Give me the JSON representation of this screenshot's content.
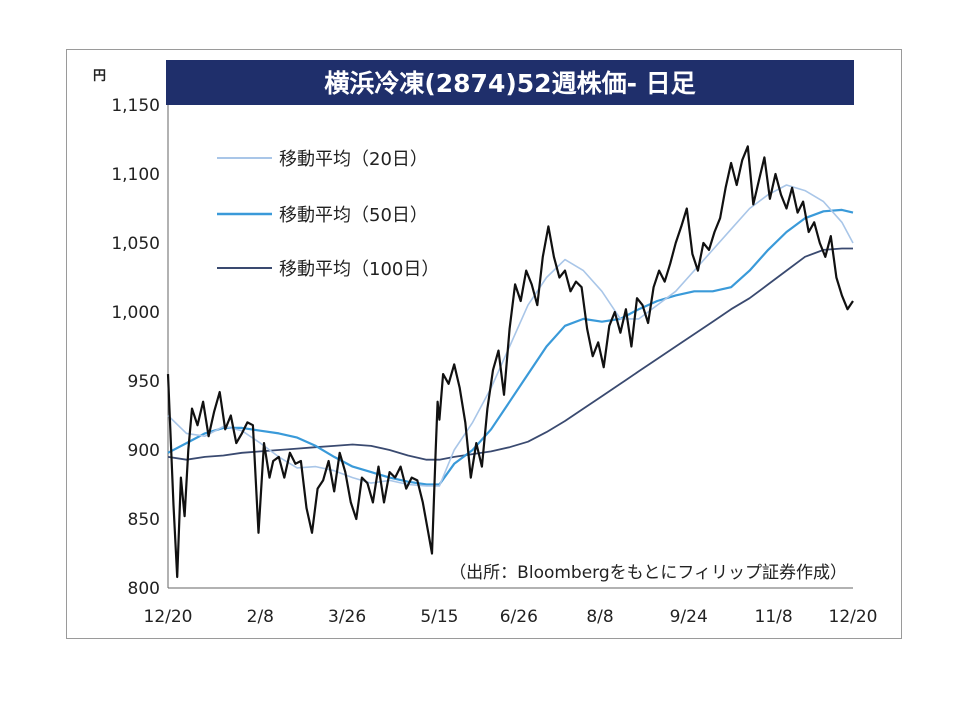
{
  "chart_data": {
    "type": "line",
    "title": "横浜冷凍(2874)52週株価- 日足",
    "y_unit": "円",
    "ylim": [
      800,
      1150
    ],
    "y_ticks": [
      "800",
      "850",
      "900",
      "950",
      "1,000",
      "1,050",
      "1,100",
      "1,150"
    ],
    "y_tick_values": [
      800,
      850,
      900,
      950,
      1000,
      1050,
      1100,
      1150
    ],
    "x_ticks": [
      "12/20",
      "2/8",
      "3/26",
      "5/15",
      "6/26",
      "8/8",
      "9/24",
      "11/8",
      "12/20"
    ],
    "x_tick_values": [
      0,
      50,
      97,
      147,
      190,
      234,
      282,
      328,
      371
    ],
    "xlim": [
      0,
      371
    ],
    "source_note": "（出所：Bloombergをもとにフィリップ証券作成）",
    "colors": {
      "title_bg": "#1f2f6b",
      "price": "#111111",
      "ma20": "#a9c6e8",
      "ma50": "#3a9ad9",
      "ma100": "#3a4a70"
    },
    "series": [
      {
        "name": "株価",
        "color": "#111111",
        "x": [
          0,
          3,
          5,
          7,
          9,
          11,
          13,
          16,
          19,
          22,
          25,
          28,
          31,
          34,
          37,
          40,
          43,
          46,
          49,
          52,
          55,
          57,
          60,
          63,
          66,
          69,
          72,
          75,
          78,
          81,
          84,
          87,
          90,
          93,
          96,
          99,
          102,
          105,
          108,
          111,
          114,
          117,
          120,
          123,
          126,
          129,
          132,
          135,
          138,
          141,
          143,
          145,
          146,
          147,
          149,
          152,
          155,
          158,
          161,
          164,
          167,
          170,
          173,
          176,
          179,
          182,
          185,
          188,
          191,
          194,
          197,
          200,
          203,
          206,
          209,
          212,
          215,
          218,
          221,
          224,
          227,
          230,
          233,
          236,
          239,
          242,
          245,
          248,
          251,
          254,
          257,
          260,
          263,
          266,
          269,
          272,
          275,
          278,
          281,
          284,
          287,
          290,
          293,
          296,
          299,
          302,
          305,
          308,
          311,
          314,
          317,
          320,
          323,
          326,
          329,
          332,
          335,
          338,
          341,
          344,
          347,
          350,
          353,
          356,
          359,
          362,
          365,
          368,
          371
        ],
        "values": [
          955,
          860,
          808,
          880,
          852,
          900,
          930,
          918,
          935,
          910,
          928,
          942,
          915,
          925,
          905,
          912,
          920,
          918,
          840,
          905,
          880,
          892,
          895,
          880,
          898,
          890,
          892,
          858,
          840,
          872,
          878,
          892,
          870,
          898,
          884,
          862,
          850,
          880,
          876,
          862,
          888,
          862,
          884,
          880,
          888,
          872,
          880,
          878,
          862,
          840,
          825,
          900,
          935,
          922,
          955,
          948,
          962,
          945,
          920,
          880,
          905,
          888,
          930,
          958,
          972,
          940,
          988,
          1020,
          1008,
          1030,
          1020,
          1005,
          1040,
          1062,
          1040,
          1025,
          1030,
          1015,
          1022,
          1018,
          988,
          968,
          978,
          960,
          990,
          1000,
          985,
          1002,
          975,
          1010,
          1005,
          992,
          1018,
          1030,
          1022,
          1035,
          1050,
          1062,
          1075,
          1042,
          1030,
          1050,
          1045,
          1058,
          1068,
          1090,
          1108,
          1092,
          1110,
          1120,
          1078,
          1095,
          1112,
          1082,
          1100,
          1085,
          1075,
          1090,
          1072,
          1080,
          1058,
          1065,
          1050,
          1040,
          1055,
          1025,
          1012,
          1002,
          1008
        ]
      },
      {
        "name": "移動平均（20日）",
        "color": "#a9c6e8",
        "x": [
          0,
          10,
          20,
          30,
          40,
          50,
          60,
          70,
          80,
          90,
          100,
          110,
          120,
          130,
          140,
          147,
          155,
          165,
          175,
          185,
          195,
          205,
          215,
          225,
          235,
          245,
          255,
          265,
          275,
          285,
          295,
          305,
          315,
          325,
          335,
          345,
          355,
          365,
          371
        ],
        "values": [
          925,
          912,
          910,
          917,
          914,
          905,
          895,
          887,
          888,
          885,
          880,
          876,
          878,
          875,
          874,
          874,
          900,
          920,
          945,
          975,
          1005,
          1025,
          1038,
          1030,
          1015,
          995,
          995,
          1005,
          1015,
          1030,
          1045,
          1060,
          1075,
          1085,
          1092,
          1088,
          1080,
          1065,
          1050
        ]
      },
      {
        "name": "移動平均（50日）",
        "color": "#3a9ad9",
        "x": [
          0,
          10,
          20,
          30,
          40,
          50,
          60,
          70,
          80,
          90,
          100,
          110,
          120,
          130,
          140,
          147,
          155,
          165,
          175,
          185,
          195,
          205,
          215,
          225,
          235,
          245,
          255,
          265,
          275,
          285,
          295,
          305,
          315,
          325,
          335,
          345,
          355,
          365,
          371
        ],
        "values": [
          898,
          905,
          912,
          916,
          916,
          914,
          912,
          909,
          903,
          895,
          888,
          884,
          880,
          877,
          875,
          875,
          890,
          900,
          915,
          935,
          955,
          975,
          990,
          995,
          993,
          995,
          1002,
          1008,
          1012,
          1015,
          1015,
          1018,
          1030,
          1045,
          1058,
          1068,
          1073,
          1074,
          1072
        ]
      },
      {
        "name": "移動平均（100日）",
        "color": "#3a4a70",
        "x": [
          0,
          10,
          20,
          30,
          40,
          50,
          60,
          70,
          80,
          90,
          100,
          110,
          120,
          130,
          140,
          147,
          155,
          165,
          175,
          185,
          195,
          205,
          215,
          225,
          235,
          245,
          255,
          265,
          275,
          285,
          295,
          305,
          315,
          325,
          335,
          345,
          355,
          365,
          371
        ],
        "values": [
          895,
          893,
          895,
          896,
          898,
          899,
          900,
          901,
          902,
          903,
          904,
          903,
          900,
          896,
          893,
          893,
          895,
          897,
          899,
          902,
          906,
          913,
          921,
          930,
          939,
          948,
          957,
          966,
          975,
          984,
          993,
          1002,
          1010,
          1020,
          1030,
          1040,
          1045,
          1046,
          1046
        ]
      }
    ]
  }
}
